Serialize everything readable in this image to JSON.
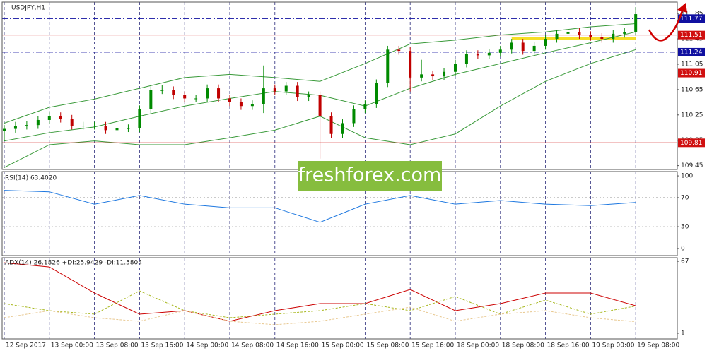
{
  "chart_data": [
    {
      "type": "candlestick",
      "title": "USDJPY,H1",
      "x": [
        0,
        2,
        4,
        6,
        8,
        10,
        12,
        14,
        16,
        18,
        20,
        22,
        24,
        26,
        28,
        30,
        32,
        34,
        36,
        38,
        40,
        42,
        44,
        46,
        48,
        50,
        52,
        54,
        56,
        58,
        60,
        62,
        64,
        66,
        68,
        70,
        72,
        74,
        76,
        78,
        80,
        82,
        84,
        86,
        88,
        90,
        92,
        94,
        96,
        98,
        100,
        102,
        104,
        106,
        108,
        110,
        112
      ],
      "open": [
        110.0,
        110.03,
        110.08,
        110.09,
        110.17,
        110.23,
        110.19,
        110.08,
        110.08,
        110.08,
        110.01,
        110.04,
        110.04,
        110.34,
        110.64,
        110.64,
        110.56,
        110.51,
        110.51,
        110.67,
        110.51,
        110.45,
        110.39,
        110.42,
        110.67,
        110.62,
        110.71,
        110.53,
        110.56,
        110.23,
        109.95,
        110.12,
        110.34,
        110.42,
        110.75,
        111.28,
        111.26,
        110.84,
        110.89,
        110.86,
        110.93,
        111.06,
        111.21,
        111.19,
        111.23,
        111.28,
        111.39,
        111.26,
        111.34,
        111.45,
        111.53,
        111.56,
        111.51,
        111.48,
        111.45,
        111.53,
        111.56
      ],
      "high": [
        110.09,
        110.14,
        110.15,
        110.23,
        110.29,
        110.29,
        110.25,
        110.14,
        110.14,
        110.14,
        110.1,
        110.1,
        110.4,
        110.7,
        110.72,
        110.7,
        110.62,
        110.57,
        110.73,
        110.73,
        110.57,
        110.51,
        110.48,
        111.03,
        110.73,
        110.77,
        110.77,
        110.62,
        110.62,
        110.29,
        110.18,
        110.4,
        110.48,
        110.81,
        111.34,
        111.34,
        111.32,
        111.12,
        110.95,
        110.99,
        111.12,
        111.27,
        111.27,
        111.29,
        111.34,
        111.45,
        111.45,
        111.4,
        111.51,
        111.59,
        111.62,
        111.62,
        111.57,
        111.54,
        111.59,
        111.62,
        111.95
      ],
      "low": [
        109.84,
        109.97,
        110.02,
        110.03,
        110.11,
        110.13,
        110.02,
        110.02,
        110.02,
        109.95,
        109.95,
        109.98,
        109.98,
        110.28,
        110.58,
        110.5,
        110.45,
        110.45,
        110.45,
        110.45,
        110.39,
        110.33,
        110.33,
        110.28,
        110.56,
        110.56,
        110.47,
        110.47,
        109.56,
        109.89,
        109.89,
        110.06,
        110.28,
        110.36,
        110.69,
        111.2,
        110.62,
        110.78,
        110.8,
        110.8,
        110.87,
        111.0,
        111.13,
        111.13,
        111.17,
        111.22,
        111.2,
        111.2,
        111.28,
        111.39,
        111.47,
        111.45,
        111.42,
        111.39,
        111.39,
        111.47,
        111.5
      ],
      "close": [
        110.03,
        110.08,
        110.09,
        110.17,
        110.23,
        110.19,
        110.08,
        110.08,
        110.08,
        110.01,
        110.04,
        110.04,
        110.34,
        110.64,
        110.64,
        110.56,
        110.51,
        110.51,
        110.67,
        110.51,
        110.45,
        110.39,
        110.42,
        110.67,
        110.62,
        110.71,
        110.53,
        110.56,
        110.23,
        109.95,
        110.12,
        110.34,
        110.42,
        110.75,
        111.28,
        111.26,
        110.84,
        110.89,
        110.86,
        110.93,
        111.06,
        111.21,
        111.19,
        111.23,
        111.28,
        111.39,
        111.26,
        111.34,
        111.45,
        111.53,
        111.56,
        111.51,
        111.48,
        111.45,
        111.53,
        111.56,
        111.84
      ],
      "up_color": "#008a00",
      "down_color": "#c00000",
      "bands": {
        "x": [
          0,
          8,
          16,
          24,
          32,
          40,
          48,
          56,
          64,
          72,
          80,
          88,
          96,
          104,
          112
        ],
        "color": "#3a9a3a",
        "series": [
          {
            "values": [
              110.12,
              110.37,
              110.5,
              110.67,
              110.84,
              110.89,
              110.84,
              110.78,
              111.06,
              111.37,
              111.43,
              111.51,
              111.56,
              111.64,
              111.69
            ]
          },
          {
            "values": [
              109.84,
              109.97,
              110.06,
              110.23,
              110.39,
              110.51,
              110.62,
              110.56,
              110.39,
              110.67,
              110.89,
              111.06,
              111.23,
              111.39,
              111.56
            ]
          },
          {
            "values": [
              109.42,
              109.78,
              109.84,
              109.78,
              109.78,
              109.89,
              110.01,
              110.23,
              109.89,
              109.78,
              109.95,
              110.39,
              110.78,
              111.06,
              111.28
            ]
          }
        ]
      },
      "highlight": {
        "xlim": [
          90,
          112
        ],
        "ylim": [
          111.43,
          111.48
        ],
        "color": "#f5d800"
      },
      "levels": [
        {
          "value": 111.77,
          "color": "#1010a0",
          "dash": true
        },
        {
          "value": 111.51,
          "color": "#d01010",
          "dash": false
        },
        {
          "value": 111.24,
          "color": "#1010a0",
          "dash": true
        },
        {
          "value": 110.91,
          "color": "#d01010",
          "dash": false
        },
        {
          "value": 109.81,
          "color": "#d01010",
          "dash": false
        }
      ],
      "xlim": [
        -0.375,
        119.375
      ],
      "ylim": [
        109.39,
        112.03
      ],
      "yticks": [
        111.85,
        111.45,
        111.05,
        110.65,
        110.25,
        109.85,
        109.45
      ],
      "xticks": [
        {
          "value": 0,
          "label": "12 Sep 2017"
        },
        {
          "value": 8,
          "label": "13 Sep 00:00"
        },
        {
          "value": 16,
          "label": "13 Sep 08:00"
        },
        {
          "value": 24,
          "label": "13 Sep 16:00"
        },
        {
          "value": 32,
          "label": "14 Sep 00:00"
        },
        {
          "value": 40,
          "label": "14 Sep 08:00"
        },
        {
          "value": 48,
          "label": "14 Sep 16:00"
        },
        {
          "value": 56,
          "label": "15 Sep 00:00"
        },
        {
          "value": 64,
          "label": "15 Sep 08:00"
        },
        {
          "value": 72,
          "label": "15 Sep 16:00"
        },
        {
          "value": 80,
          "label": "18 Sep 00:00"
        },
        {
          "value": 88,
          "label": "18 Sep 08:00"
        },
        {
          "value": 96,
          "label": "18 Sep 16:00"
        },
        {
          "value": 104,
          "label": "19 Sep 00:00"
        },
        {
          "value": 112,
          "label": "19 Sep 08:00"
        }
      ]
    },
    {
      "type": "line",
      "title": "RSI(14) 63.4020",
      "x": [
        0,
        8,
        16,
        24,
        32,
        40,
        48,
        56,
        64,
        72,
        80,
        88,
        96,
        104,
        112
      ],
      "series": [
        {
          "color": "#1e78e0",
          "values": [
            80,
            78,
            61,
            73,
            61,
            56,
            56,
            36,
            61,
            73,
            61,
            66,
            61,
            59,
            63.4
          ]
        }
      ],
      "ylim": [
        -9.8,
        105.9
      ],
      "yticks": [
        0,
        30,
        70,
        100
      ],
      "levels": [
        30,
        70
      ]
    },
    {
      "type": "line",
      "title": "ADX(14) 26.1826 +DI:25.9429 -DI:11.5804",
      "x": [
        0,
        8,
        16,
        24,
        32,
        40,
        48,
        56,
        64,
        72,
        80,
        88,
        96,
        104,
        112
      ],
      "series": [
        {
          "color": "#cc0000",
          "values": [
            65.7,
            61.8,
            37.9,
            18.5,
            21.7,
            12.0,
            21.7,
            28.2,
            28.2,
            41.1,
            21.7,
            28.2,
            37.9,
            37.9,
            26.2
          ]
        },
        {
          "color": "#a8b820",
          "dashed": true,
          "values": [
            28.2,
            21.7,
            18.5,
            39.8,
            21.7,
            15.2,
            18.5,
            21.7,
            28.2,
            21.7,
            34.7,
            18.5,
            31.4,
            18.5,
            25.9
          ]
        },
        {
          "color": "#e8c890",
          "dashed": true,
          "values": [
            15.2,
            21.7,
            15.2,
            12.0,
            21.7,
            12.0,
            8.8,
            12.0,
            18.5,
            24.9,
            12.0,
            18.5,
            21.7,
            15.2,
            11.6
          ]
        }
      ],
      "ylim": [
        -4.2,
        70.3
      ],
      "yticks": [
        1,
        67
      ]
    }
  ],
  "watermark": "freshforex.com"
}
